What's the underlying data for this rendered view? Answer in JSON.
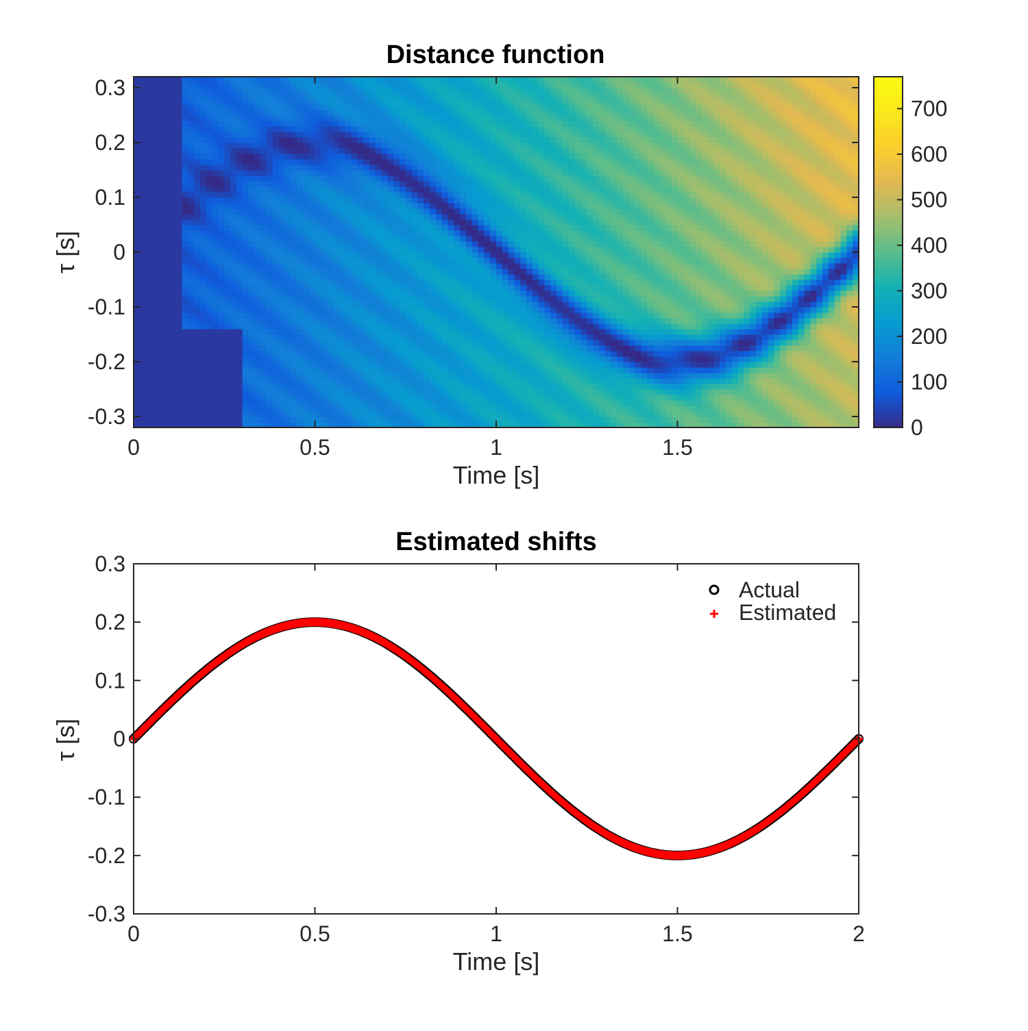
{
  "colors": {
    "actual_marker": "#000000",
    "estimated_marker": "#ff0000",
    "axes": "#262626",
    "colormap": "parula"
  },
  "chart_data": [
    {
      "type": "heatmap",
      "title": "Distance function",
      "xlabel": "Time [s]",
      "ylabel": "τ [s]",
      "xlim": [
        0,
        2
      ],
      "ylim": [
        -0.32,
        0.32
      ],
      "xticks": [
        0,
        0.5,
        1,
        1.5
      ],
      "xtick_labels": [
        "0",
        "0.5",
        "1",
        "1.5"
      ],
      "yticks": [
        0.3,
        0.2,
        0.1,
        0,
        -0.1,
        -0.2,
        -0.3
      ],
      "ytick_labels": [
        "0.3",
        "0.2",
        "0.1",
        "0",
        "-0.1",
        "-0.2",
        "-0.3"
      ],
      "colorbar": {
        "range": [
          0,
          770
        ],
        "ticks": [
          0,
          100,
          200,
          300,
          400,
          500,
          600,
          700
        ],
        "tick_labels": [
          "0",
          "100",
          "200",
          "300",
          "400",
          "500",
          "600",
          "700"
        ]
      },
      "valley_function": "tau = 0.2*sin(pi*t)",
      "grid": false
    },
    {
      "type": "scatter",
      "title": "Estimated shifts",
      "xlabel": "Time [s]",
      "ylabel": "τ [s]",
      "xlim": [
        0,
        2
      ],
      "ylim": [
        -0.3,
        0.3
      ],
      "xticks": [
        0,
        0.5,
        1,
        1.5,
        2
      ],
      "xtick_labels": [
        "0",
        "0.5",
        "1",
        "1.5",
        "2"
      ],
      "yticks": [
        0.3,
        0.2,
        0.1,
        0,
        -0.1,
        -0.2,
        -0.3
      ],
      "ytick_labels": [
        "0.3",
        "0.2",
        "0.1",
        "0",
        "-0.1",
        "-0.2",
        "-0.3"
      ],
      "legend_position": "top-right",
      "grid": false,
      "series": [
        {
          "name": "Actual",
          "marker": "circle",
          "function": "0.2*sin(pi*t)",
          "x_range": [
            0,
            2
          ]
        },
        {
          "name": "Estimated",
          "marker": "plus",
          "function": "0.2*sin(pi*t)",
          "x_range": [
            0,
            2
          ]
        }
      ]
    }
  ]
}
